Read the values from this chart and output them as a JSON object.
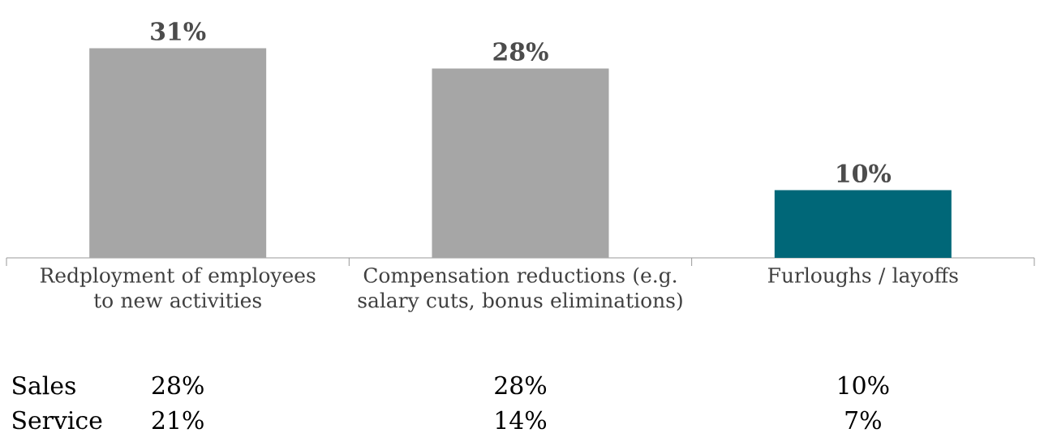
{
  "chart_data": {
    "type": "bar",
    "categories": [
      "Redployment of employees to new activities",
      "Compensation reductions (e.g. salary cuts, bonus eliminations)",
      "Furloughs / layoffs"
    ],
    "values": [
      31,
      28,
      10
    ],
    "colors": [
      "#a6a6a6",
      "#a6a6a6",
      "#006778"
    ],
    "value_labels": [
      "31%",
      "28%",
      "10%"
    ],
    "annotations": [
      "Sales",
      "28%",
      "28%",
      "10%",
      "Service",
      "21%",
      "14%",
      "7%"
    ]
  }
}
